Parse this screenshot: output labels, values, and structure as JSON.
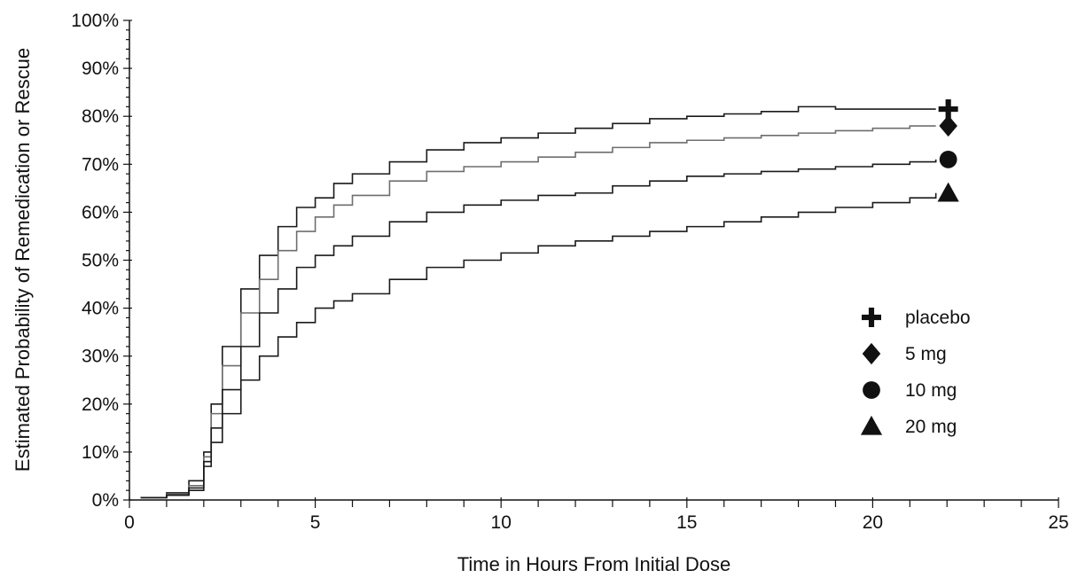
{
  "chart_data": {
    "type": "line",
    "title": "",
    "xlabel": "Time in Hours From Initial Dose",
    "ylabel": "Estimated Probability of Remedication or Rescue",
    "xlim": [
      0,
      25
    ],
    "ylim": [
      0,
      100
    ],
    "x_ticks": [
      0,
      5,
      10,
      15,
      20,
      25
    ],
    "y_ticks": [
      0,
      10,
      20,
      30,
      40,
      50,
      60,
      70,
      80,
      90,
      100
    ],
    "y_tick_labels": [
      "0%",
      "10%",
      "20%",
      "30%",
      "40%",
      "50%",
      "60%",
      "70%",
      "80%",
      "90%",
      "100%"
    ],
    "x_tick_labels": [
      "0",
      "5",
      "10",
      "15",
      "20",
      "25"
    ],
    "grid": false,
    "legend_position": "right",
    "series": [
      {
        "name": "placebo",
        "marker": "plus",
        "color": "#1a1a1a",
        "x": [
          0.3,
          1.0,
          1.6,
          2.0,
          2.2,
          2.5,
          3.0,
          3.5,
          4.0,
          4.5,
          5.0,
          5.5,
          6.0,
          7.0,
          8.0,
          9.0,
          10.0,
          11.0,
          12.0,
          13.0,
          14.0,
          15.0,
          16.0,
          17.0,
          18.0,
          19.0,
          20.0,
          21.0,
          21.7
        ],
        "values": [
          0.5,
          1.5,
          4,
          10,
          20,
          32,
          44,
          51,
          57,
          61,
          63,
          66,
          68,
          70.5,
          73,
          74.5,
          75.5,
          76.5,
          77.5,
          78.5,
          79.5,
          80,
          80.5,
          81,
          82,
          81.5,
          81.5,
          81.5,
          81.5
        ]
      },
      {
        "name": "5 mg",
        "marker": "diamond",
        "color": "#6e6e6e",
        "x": [
          0.3,
          1.0,
          1.6,
          2.0,
          2.2,
          2.5,
          3.0,
          3.5,
          4.0,
          4.5,
          5.0,
          5.5,
          6.0,
          7.0,
          8.0,
          9.0,
          10.0,
          11.0,
          12.0,
          13.0,
          14.0,
          15.0,
          16.0,
          17.0,
          18.0,
          19.0,
          20.0,
          21.0,
          21.7
        ],
        "values": [
          0.5,
          1.2,
          3,
          9,
          18,
          28,
          39,
          46,
          52,
          56,
          59,
          61.5,
          63.5,
          66.5,
          68.5,
          69.5,
          70.5,
          71.5,
          72.5,
          73.5,
          74.5,
          75,
          75.5,
          76,
          76.5,
          77,
          77.5,
          78,
          78
        ]
      },
      {
        "name": "10 mg",
        "marker": "circle",
        "color": "#1a1a1a",
        "x": [
          0.3,
          1.0,
          1.6,
          2.0,
          2.2,
          2.5,
          3.0,
          3.5,
          4.0,
          4.5,
          5.0,
          5.5,
          6.0,
          7.0,
          8.0,
          9.0,
          10.0,
          11.0,
          12.0,
          13.0,
          14.0,
          15.0,
          16.0,
          17.0,
          18.0,
          19.0,
          20.0,
          21.0,
          21.7
        ],
        "values": [
          0.5,
          1.0,
          2.5,
          8,
          15,
          23,
          32,
          39,
          44,
          48.5,
          51,
          53,
          55,
          58,
          60,
          61.5,
          62.5,
          63.5,
          64,
          65.5,
          66.5,
          67.5,
          68,
          68.5,
          69,
          69.5,
          70,
          70.5,
          71
        ]
      },
      {
        "name": "20 mg",
        "marker": "triangle",
        "color": "#1a1a1a",
        "x": [
          0.3,
          1.0,
          1.6,
          2.0,
          2.2,
          2.5,
          3.0,
          3.5,
          4.0,
          4.5,
          5.0,
          5.5,
          6.0,
          7.0,
          8.0,
          9.0,
          10.0,
          11.0,
          12.0,
          13.0,
          14.0,
          15.0,
          16.0,
          17.0,
          18.0,
          19.0,
          20.0,
          21.0,
          21.7
        ],
        "values": [
          0.5,
          1.0,
          2.0,
          7,
          12,
          18,
          25,
          30,
          34,
          37,
          40,
          41.5,
          43,
          46,
          48.5,
          50,
          51.5,
          53,
          54,
          55,
          56,
          57,
          58,
          59,
          60,
          61,
          62,
          63,
          64
        ]
      }
    ]
  }
}
